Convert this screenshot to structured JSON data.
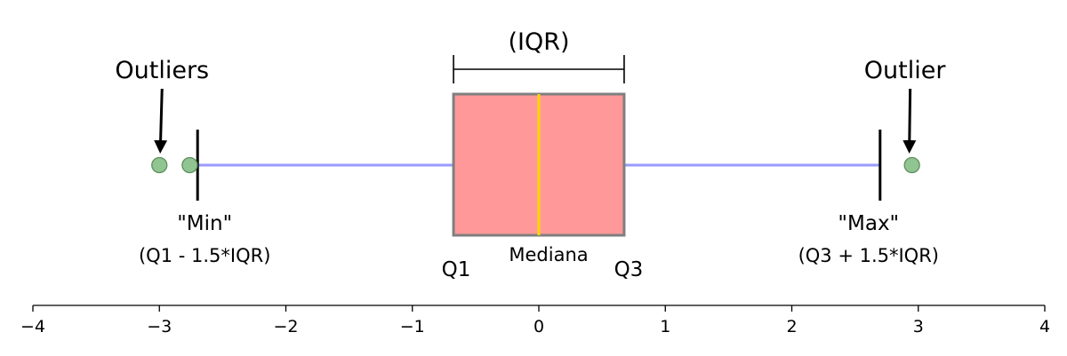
{
  "chart_data": {
    "type": "box",
    "orientation": "horizontal",
    "xlim": [
      -4,
      4
    ],
    "ticks": [
      -4,
      -3,
      -2,
      -1,
      0,
      1,
      2,
      3,
      4
    ],
    "tick_labels": [
      "−4",
      "−3",
      "−2",
      "−1",
      "0",
      "1",
      "2",
      "3",
      "4"
    ],
    "box": {
      "q1": -0.6745,
      "median": 0,
      "q3": 0.6745,
      "whisker_low": -2.698,
      "whisker_high": 2.698
    },
    "outliers": [
      -3.0,
      -2.76,
      2.95
    ],
    "colors": {
      "box_fill": "#ff9999",
      "box_edge": "#7f7f7f",
      "median": "#ffd700",
      "whisker": "#9999ff",
      "outlier_fill": "#90c490",
      "outlier_edge": "#5f8f5f"
    },
    "annotations": {
      "iqr": "(IQR)",
      "outliers_left": "Outliers",
      "outlier_right": "Outlier",
      "min_title": "\"Min\"",
      "min_formula": "(Q1 - 1.5*IQR)",
      "max_title": "\"Max\"",
      "max_formula": "(Q3 + 1.5*IQR)",
      "q1": "Q1",
      "median": "Mediana",
      "q3": "Q3"
    }
  }
}
